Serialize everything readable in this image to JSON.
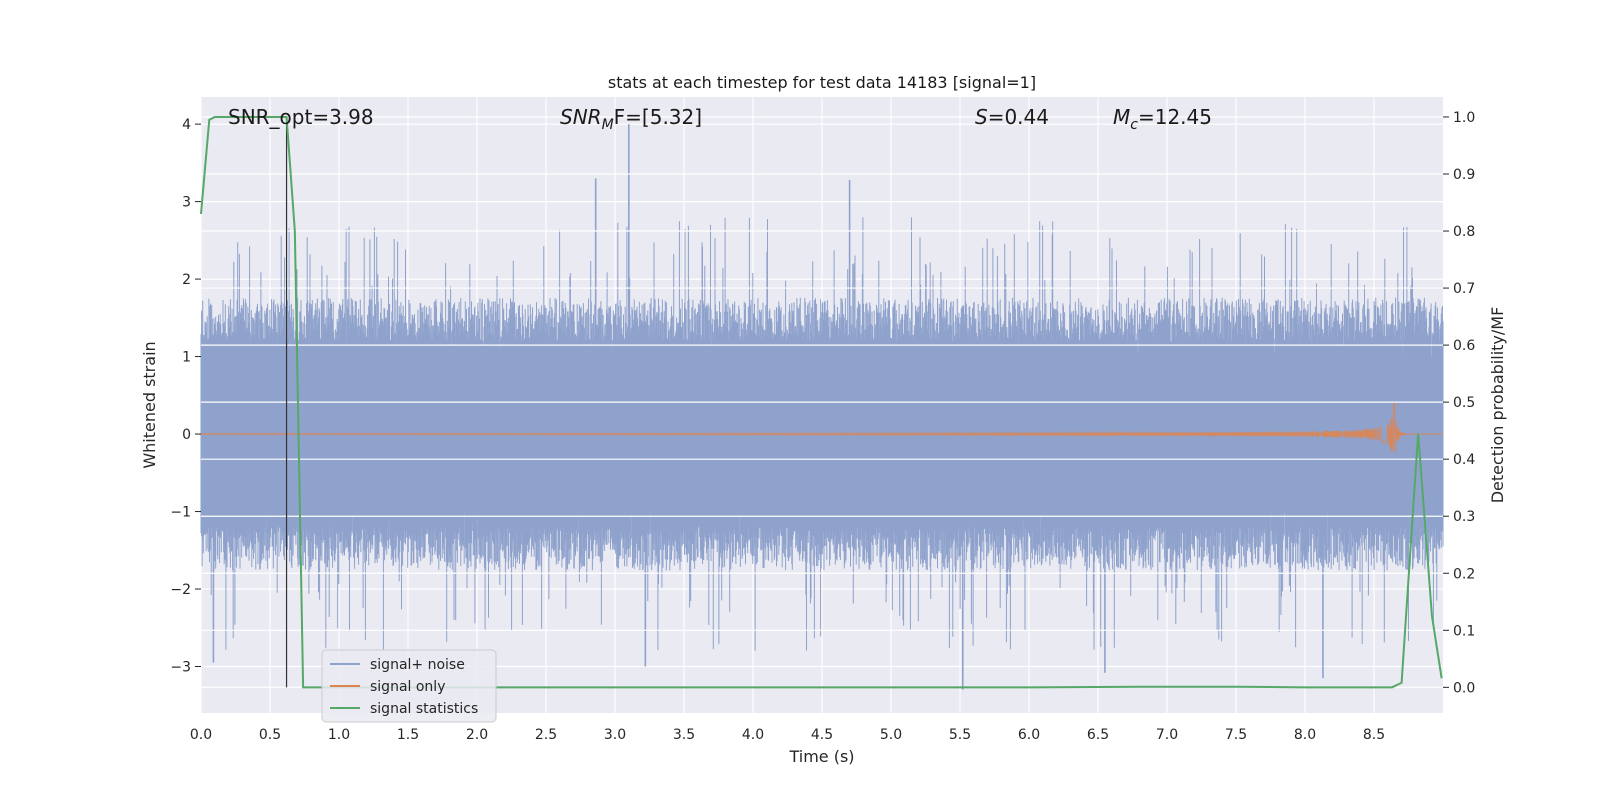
{
  "chart_data": {
    "type": "line",
    "title": "stats at each timestep for test data 14183 [signal=1]",
    "xlabel": "Time (s)",
    "ylabel_left": "Whitened strain",
    "ylabel_right": "Detection probability/MF",
    "xlim": [
      0,
      9
    ],
    "ylim_left": [
      -3.6,
      4.35
    ],
    "ylim_right": [
      -0.045,
      1.035
    ],
    "x_ticks": [
      "0.0",
      "0.5",
      "1.0",
      "1.5",
      "2.0",
      "2.5",
      "3.0",
      "3.5",
      "4.0",
      "4.5",
      "5.0",
      "5.5",
      "6.0",
      "6.5",
      "7.0",
      "7.5",
      "8.0",
      "8.5"
    ],
    "y_ticks_left": [
      "4",
      "3",
      "2",
      "1",
      "0",
      "−1",
      "−2",
      "−3"
    ],
    "y_ticks_right": [
      "1.0",
      "0.9",
      "0.8",
      "0.7",
      "0.6",
      "0.5",
      "0.4",
      "0.3",
      "0.2",
      "0.1",
      "0.0"
    ],
    "grid": true,
    "legend_position": "lower-left",
    "annotations": {
      "snr_opt": "SNR_opt=3.98",
      "snr_mf_main": "SNR",
      "snr_mf_sub": "M",
      "snr_mf_tail": "F=[5.32]",
      "s_main": "S",
      "s_tail": "=0.44",
      "mc_main": "M",
      "mc_sub": "c",
      "mc_tail": "=12.45"
    },
    "vertical_marker_x": 0.62,
    "series": [
      {
        "name": "signal+ noise",
        "axis": "left",
        "color": "#8ea2cc",
        "kind": "noise",
        "amplitude_core": 1.6,
        "tallest_spikes": [
          {
            "x": 3.1,
            "y": 4.0
          },
          {
            "x": 2.86,
            "y": 3.3
          },
          {
            "x": 4.7,
            "y": 3.28
          },
          {
            "x": 5.52,
            "y": -3.3
          },
          {
            "x": 6.55,
            "y": -3.08
          },
          {
            "x": 3.22,
            "y": -3.0
          },
          {
            "x": 0.09,
            "y": -2.95
          },
          {
            "x": 8.13,
            "y": -3.15
          }
        ]
      },
      {
        "name": "signal only",
        "axis": "left",
        "color": "#dd8452",
        "kind": "chirp",
        "merger_time": 8.65,
        "peak_amplitude": 0.58
      },
      {
        "name": "signal statistics",
        "axis": "right",
        "color": "#55a868",
        "x": [
          0.0,
          0.06,
          0.1,
          0.2,
          0.3,
          0.4,
          0.5,
          0.6,
          0.62,
          0.68,
          0.74,
          0.8,
          1.0,
          2.0,
          3.0,
          4.0,
          5.0,
          6.0,
          6.8,
          7.5,
          8.0,
          8.5,
          8.63,
          8.7,
          8.82,
          8.92,
          8.99
        ],
        "y": [
          0.83,
          0.995,
          1.0,
          1.0,
          1.0,
          1.0,
          1.0,
          1.0,
          1.0,
          0.8,
          0.0,
          0.0,
          0.0,
          0.0,
          0.0,
          0.0,
          0.0,
          0.0,
          0.001,
          0.001,
          0.0,
          0.0,
          0.0,
          0.008,
          0.445,
          0.125,
          0.016
        ]
      }
    ]
  }
}
